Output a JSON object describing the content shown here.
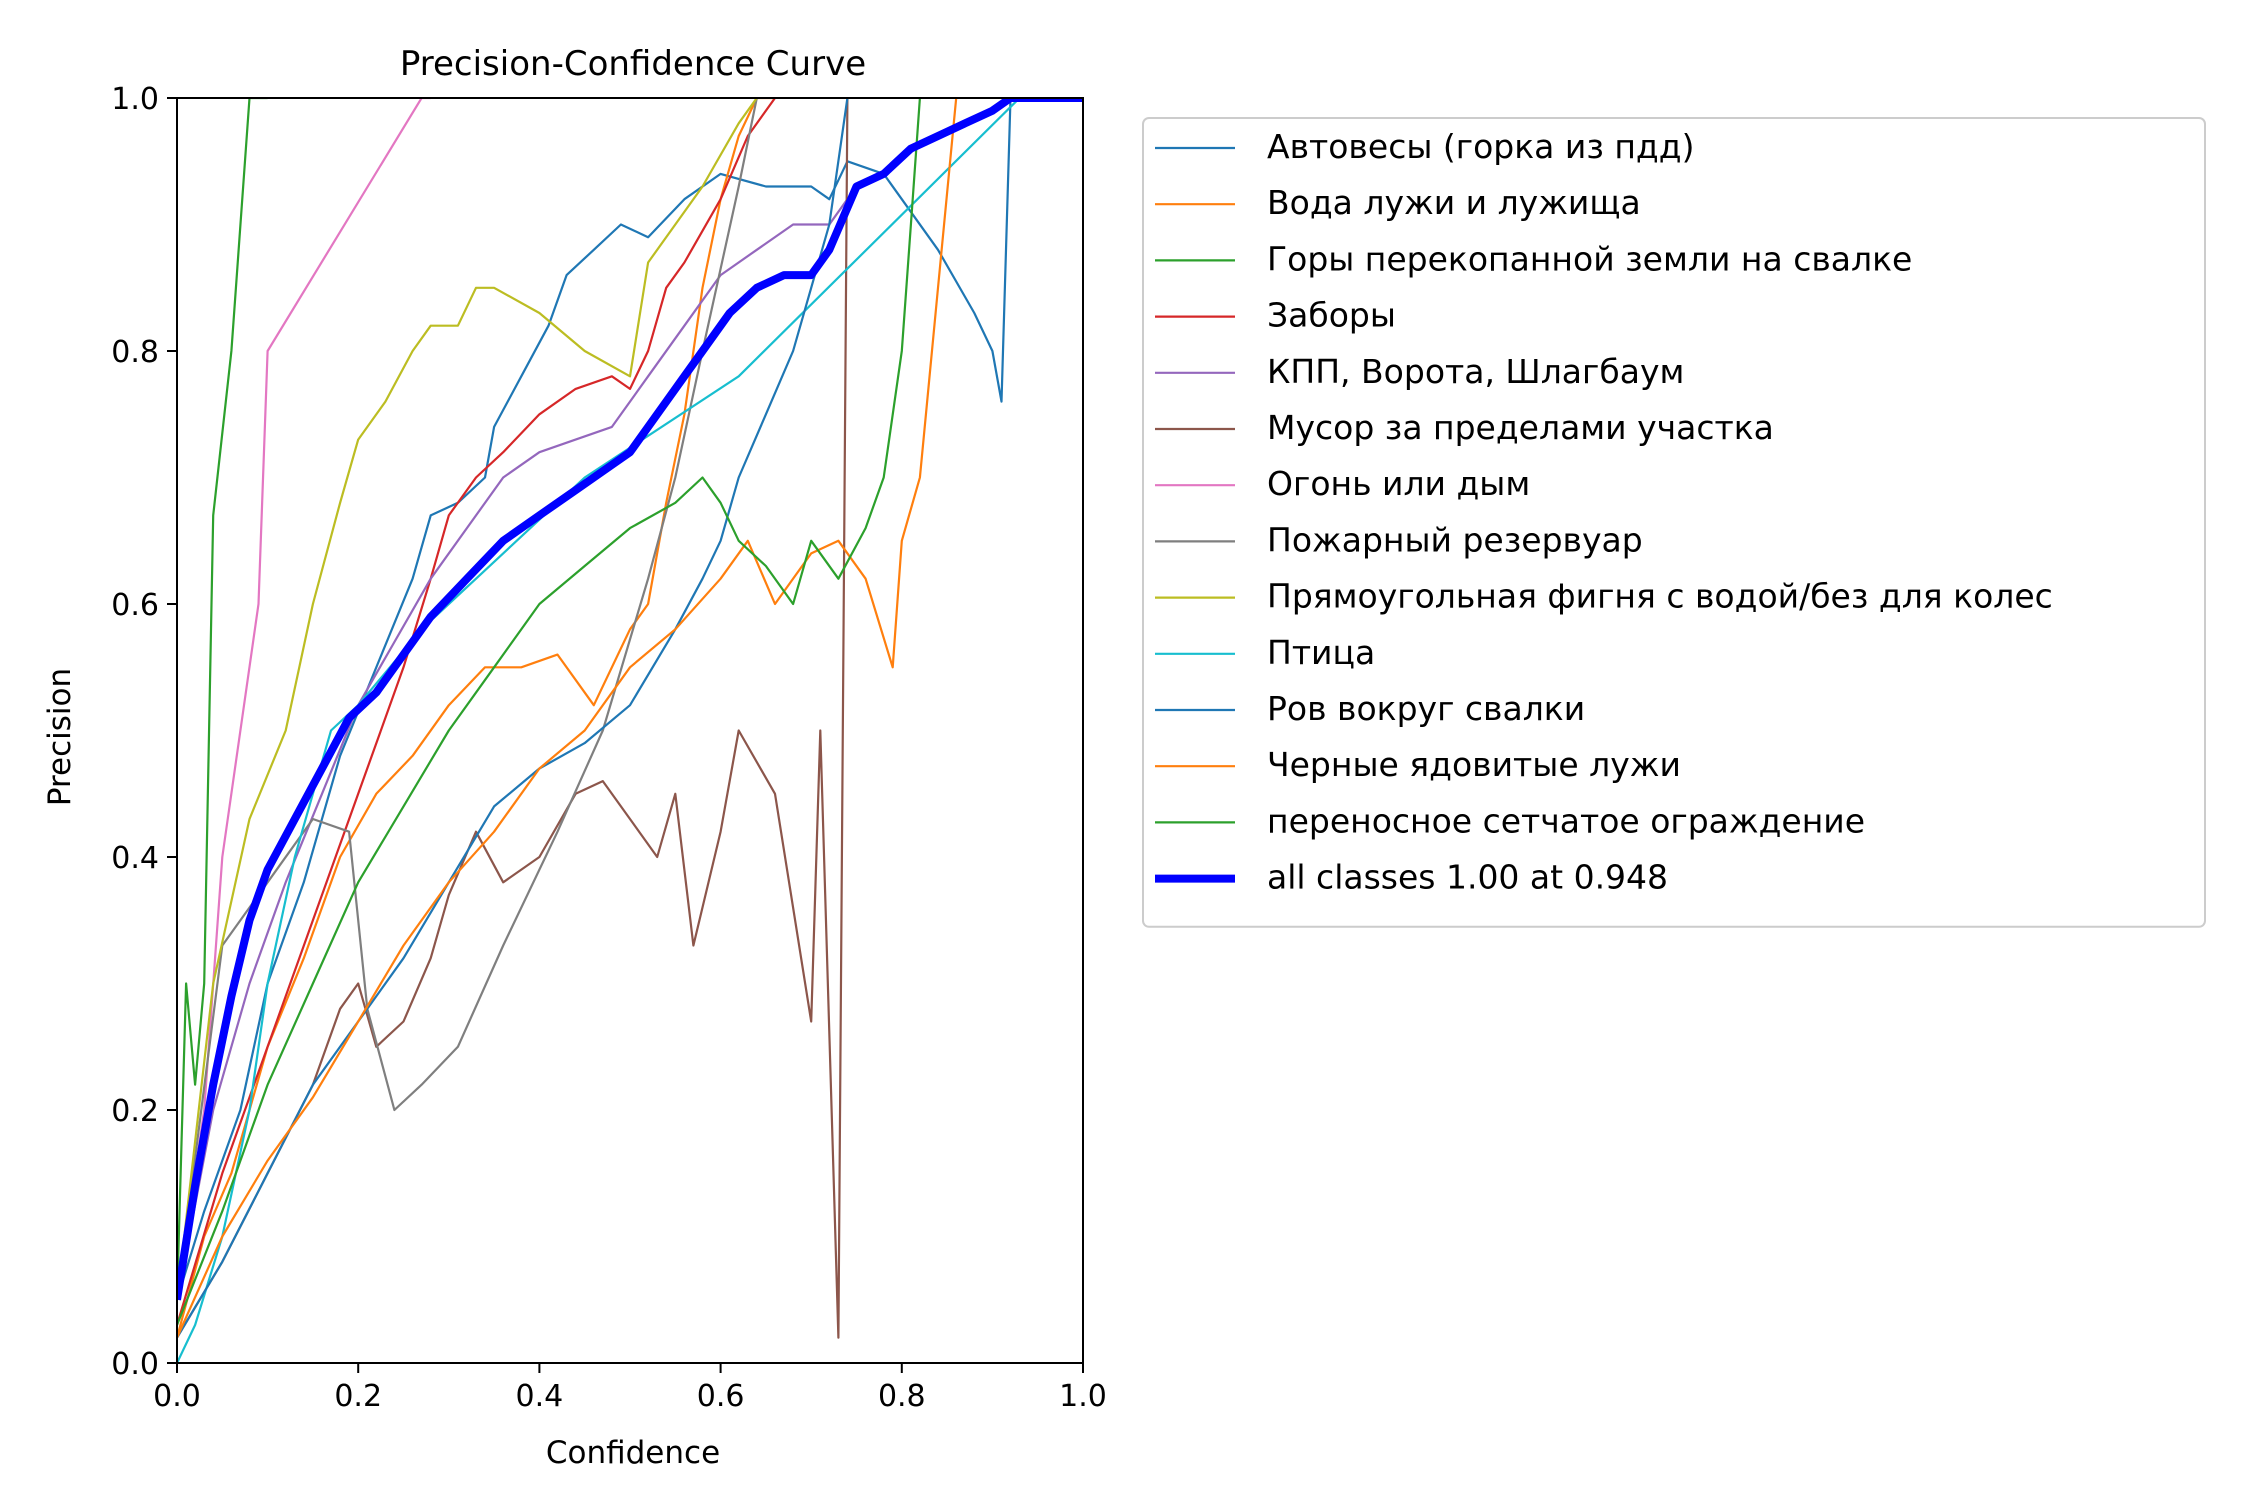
{
  "chart_data": {
    "type": "line",
    "title": "Precision-Confidence Curve",
    "xlabel": "Confidence",
    "ylabel": "Precision",
    "xlim": [
      0,
      1
    ],
    "ylim": [
      0,
      1
    ],
    "x_ticks": [
      "0.0",
      "0.2",
      "0.4",
      "0.6",
      "0.8",
      "1.0"
    ],
    "y_ticks": [
      "0.0",
      "0.2",
      "0.4",
      "0.6",
      "0.8",
      "1.0"
    ],
    "grid": false,
    "legend_position": "outside-right",
    "series": [
      {
        "name": "Автовесы (горка из пдд)",
        "color": "#1f77b4",
        "x": [
          0.0,
          0.03,
          0.07,
          0.1,
          0.14,
          0.18,
          0.22,
          0.26,
          0.28,
          0.31,
          0.34,
          0.35,
          0.38,
          0.41,
          0.43,
          0.46,
          0.49,
          0.52,
          0.56,
          0.6,
          0.65,
          0.7,
          0.72,
          0.74,
          0.78,
          0.8,
          0.84,
          0.88,
          0.9,
          0.91,
          0.92,
          0.95,
          1.0
        ],
        "y": [
          0.05,
          0.12,
          0.2,
          0.3,
          0.38,
          0.48,
          0.55,
          0.62,
          0.67,
          0.68,
          0.7,
          0.74,
          0.78,
          0.82,
          0.86,
          0.88,
          0.9,
          0.89,
          0.92,
          0.94,
          0.93,
          0.93,
          0.92,
          0.95,
          0.94,
          0.92,
          0.88,
          0.83,
          0.8,
          0.76,
          1.0,
          1.0,
          1.0
        ]
      },
      {
        "name": "Вода лужи и лужища",
        "color": "#ff7f0e",
        "x": [
          0.0,
          0.03,
          0.06,
          0.1,
          0.14,
          0.18,
          0.22,
          0.26,
          0.3,
          0.34,
          0.38,
          0.42,
          0.46,
          0.5,
          0.52,
          0.54,
          0.56,
          0.58,
          0.6,
          0.62,
          0.64,
          0.66
        ],
        "y": [
          0.02,
          0.1,
          0.15,
          0.25,
          0.32,
          0.4,
          0.45,
          0.48,
          0.52,
          0.55,
          0.55,
          0.56,
          0.52,
          0.58,
          0.6,
          0.68,
          0.75,
          0.85,
          0.92,
          0.97,
          1.0,
          1.0
        ]
      },
      {
        "name": "Горы перекопанной земли на свалке",
        "color": "#2ca02c",
        "x": [
          0.0,
          0.01,
          0.02,
          0.03,
          0.04,
          0.06,
          0.08,
          0.1
        ],
        "y": [
          0.05,
          0.3,
          0.22,
          0.3,
          0.67,
          0.8,
          1.0,
          1.0
        ]
      },
      {
        "name": "Заборы",
        "color": "#d62728",
        "x": [
          0.0,
          0.05,
          0.1,
          0.15,
          0.2,
          0.25,
          0.28,
          0.3,
          0.33,
          0.36,
          0.4,
          0.44,
          0.48,
          0.5,
          0.52,
          0.54,
          0.56,
          0.6,
          0.63,
          0.66
        ],
        "y": [
          0.03,
          0.15,
          0.25,
          0.35,
          0.45,
          0.55,
          0.62,
          0.67,
          0.7,
          0.72,
          0.75,
          0.77,
          0.78,
          0.77,
          0.8,
          0.85,
          0.87,
          0.92,
          0.97,
          1.0
        ]
      },
      {
        "name": "КПП, Ворота, Шлагбаум",
        "color": "#9467bd",
        "x": [
          0.0,
          0.04,
          0.08,
          0.12,
          0.16,
          0.2,
          0.24,
          0.28,
          0.32,
          0.36,
          0.4,
          0.44,
          0.48,
          0.52,
          0.56,
          0.6,
          0.64,
          0.68,
          0.72,
          0.74
        ],
        "y": [
          0.05,
          0.2,
          0.3,
          0.38,
          0.45,
          0.52,
          0.57,
          0.62,
          0.66,
          0.7,
          0.72,
          0.73,
          0.74,
          0.78,
          0.82,
          0.86,
          0.88,
          0.9,
          0.9,
          0.92
        ]
      },
      {
        "name": "Мусор за пределами участка",
        "color": "#8c564b",
        "x": [
          0.0,
          0.05,
          0.1,
          0.15,
          0.18,
          0.2,
          0.22,
          0.25,
          0.28,
          0.3,
          0.33,
          0.36,
          0.4,
          0.44,
          0.47,
          0.5,
          0.53,
          0.55,
          0.57,
          0.6,
          0.62,
          0.66,
          0.7,
          0.71,
          0.73,
          0.74
        ],
        "y": [
          0.02,
          0.08,
          0.15,
          0.22,
          0.28,
          0.3,
          0.25,
          0.27,
          0.32,
          0.37,
          0.42,
          0.38,
          0.4,
          0.45,
          0.46,
          0.43,
          0.4,
          0.45,
          0.33,
          0.42,
          0.5,
          0.45,
          0.27,
          0.5,
          0.02,
          1.0
        ]
      },
      {
        "name": "Огонь или дым",
        "color": "#e377c2",
        "x": [
          0.0,
          0.03,
          0.05,
          0.07,
          0.09,
          0.1,
          0.27,
          0.28
        ],
        "y": [
          0.05,
          0.2,
          0.4,
          0.5,
          0.6,
          0.8,
          1.0,
          1.0
        ]
      },
      {
        "name": "Пожарный резервуар",
        "color": "#7f7f7f",
        "x": [
          0.0,
          0.05,
          0.1,
          0.15,
          0.19,
          0.21,
          0.24,
          0.27,
          0.31,
          0.36,
          0.42,
          0.47,
          0.52,
          0.55,
          0.58,
          0.62,
          0.64
        ],
        "y": [
          0.05,
          0.33,
          0.38,
          0.43,
          0.42,
          0.28,
          0.2,
          0.22,
          0.25,
          0.33,
          0.42,
          0.5,
          0.62,
          0.7,
          0.8,
          0.93,
          1.0
        ]
      },
      {
        "name": "Прямоугольная фигня с водой/без для колес",
        "color": "#bcbd22",
        "x": [
          0.0,
          0.04,
          0.08,
          0.12,
          0.15,
          0.18,
          0.2,
          0.23,
          0.26,
          0.28,
          0.31,
          0.33,
          0.35,
          0.4,
          0.45,
          0.5,
          0.52,
          0.55,
          0.58,
          0.62,
          0.64
        ],
        "y": [
          0.05,
          0.3,
          0.43,
          0.5,
          0.6,
          0.68,
          0.73,
          0.76,
          0.8,
          0.82,
          0.82,
          0.85,
          0.85,
          0.83,
          0.8,
          0.78,
          0.87,
          0.9,
          0.93,
          0.98,
          1.0
        ]
      },
      {
        "name": "Птица",
        "color": "#17becf",
        "x": [
          0.0,
          0.02,
          0.05,
          0.08,
          0.1,
          0.13,
          0.17,
          0.2,
          0.27,
          0.45,
          0.62,
          0.93,
          1.0
        ],
        "y": [
          0.0,
          0.03,
          0.1,
          0.2,
          0.3,
          0.4,
          0.5,
          0.52,
          0.58,
          0.7,
          0.78,
          1.0,
          1.0
        ]
      },
      {
        "name": "Ров вокруг свалки",
        "color": "#1f77b4",
        "x": [
          0.0,
          0.05,
          0.1,
          0.15,
          0.2,
          0.25,
          0.3,
          0.35,
          0.4,
          0.45,
          0.5,
          0.55,
          0.58,
          0.6,
          0.62,
          0.65,
          0.68,
          0.7,
          0.72,
          0.74
        ],
        "y": [
          0.02,
          0.08,
          0.15,
          0.22,
          0.27,
          0.32,
          0.38,
          0.44,
          0.47,
          0.49,
          0.52,
          0.58,
          0.62,
          0.65,
          0.7,
          0.75,
          0.8,
          0.85,
          0.9,
          1.0
        ]
      },
      {
        "name": "Черные ядовитые лужи",
        "color": "#ff7f0e",
        "x": [
          0.0,
          0.05,
          0.1,
          0.15,
          0.2,
          0.25,
          0.3,
          0.35,
          0.4,
          0.45,
          0.5,
          0.55,
          0.6,
          0.63,
          0.66,
          0.7,
          0.73,
          0.76,
          0.79,
          0.8,
          0.82,
          0.84,
          0.86
        ],
        "y": [
          0.02,
          0.1,
          0.16,
          0.21,
          0.27,
          0.33,
          0.38,
          0.42,
          0.47,
          0.5,
          0.55,
          0.58,
          0.62,
          0.65,
          0.6,
          0.64,
          0.65,
          0.62,
          0.55,
          0.65,
          0.7,
          0.85,
          1.0
        ]
      },
      {
        "name": "переносное сетчатое ограждение",
        "color": "#2ca02c",
        "x": [
          0.0,
          0.05,
          0.1,
          0.15,
          0.2,
          0.25,
          0.3,
          0.35,
          0.4,
          0.45,
          0.5,
          0.55,
          0.58,
          0.6,
          0.62,
          0.65,
          0.68,
          0.7,
          0.73,
          0.76,
          0.78,
          0.8,
          0.81,
          0.82
        ],
        "y": [
          0.03,
          0.12,
          0.22,
          0.3,
          0.38,
          0.44,
          0.5,
          0.55,
          0.6,
          0.63,
          0.66,
          0.68,
          0.7,
          0.68,
          0.65,
          0.63,
          0.6,
          0.65,
          0.62,
          0.66,
          0.7,
          0.8,
          0.9,
          1.0
        ]
      },
      {
        "name": "all classes 1.00 at 0.948",
        "color": "#0000ff",
        "bold": true,
        "x": [
          0.0,
          0.02,
          0.04,
          0.06,
          0.08,
          0.1,
          0.13,
          0.16,
          0.19,
          0.22,
          0.25,
          0.28,
          0.32,
          0.36,
          0.4,
          0.44,
          0.48,
          0.5,
          0.52,
          0.55,
          0.58,
          0.61,
          0.64,
          0.67,
          0.7,
          0.72,
          0.75,
          0.78,
          0.81,
          0.84,
          0.87,
          0.9,
          0.92,
          0.948,
          1.0
        ],
        "y": [
          0.05,
          0.14,
          0.22,
          0.29,
          0.35,
          0.39,
          0.43,
          0.47,
          0.51,
          0.53,
          0.56,
          0.59,
          0.62,
          0.65,
          0.67,
          0.69,
          0.71,
          0.72,
          0.74,
          0.77,
          0.8,
          0.83,
          0.85,
          0.86,
          0.86,
          0.88,
          0.93,
          0.94,
          0.96,
          0.97,
          0.98,
          0.99,
          1.0,
          1.0,
          1.0
        ]
      }
    ]
  }
}
